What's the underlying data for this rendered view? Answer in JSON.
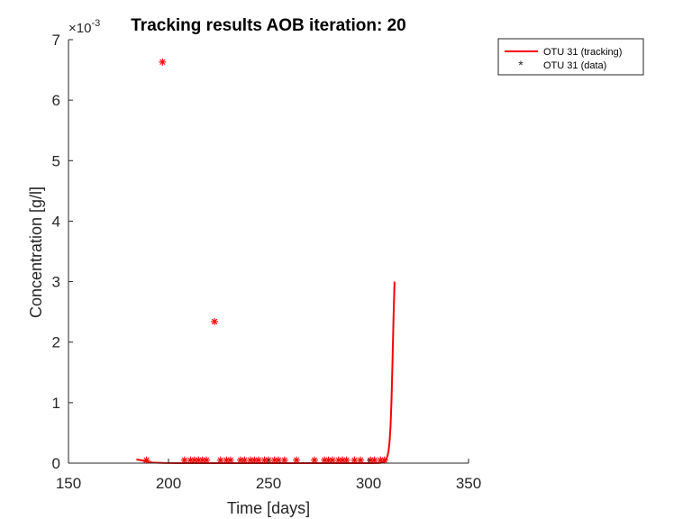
{
  "chart_data": {
    "type": "line",
    "title": "Tracking results AOB iteration: 20",
    "xlabel": "Time [days]",
    "ylabel": "Concentration [g/l]",
    "y_exponent_label": "×10",
    "y_exponent_power": "-3",
    "y_exponent_value": 0.001,
    "xlim": [
      150,
      350
    ],
    "ylim": [
      0,
      0.007
    ],
    "xticks": [
      150,
      200,
      250,
      300,
      350
    ],
    "yticks": [
      0,
      0.001,
      0.002,
      0.003,
      0.004,
      0.005,
      0.006,
      0.007
    ],
    "yticklabels": [
      "0",
      "1",
      "2",
      "3",
      "4",
      "5",
      "6",
      "7"
    ],
    "grid": false,
    "legend_location": "northeast-outside",
    "color": "#ff0000",
    "series": [
      {
        "name": "OTU 31 (tracking)",
        "type": "line",
        "x": [
          184,
          186,
          188,
          190,
          192,
          195,
          198,
          200,
          205,
          210,
          220,
          230,
          240,
          250,
          260,
          270,
          280,
          290,
          296,
          300,
          302,
          304,
          305,
          306,
          307,
          307.5,
          308,
          308.5,
          309,
          309.5,
          310,
          310.5,
          311,
          311.5,
          312,
          312.5,
          313
        ],
        "y": [
          6e-05,
          5e-05,
          3.5e-05,
          2e-05,
          1e-05,
          5e-06,
          2e-06,
          1e-06,
          5e-07,
          3e-07,
          2e-07,
          2e-07,
          2e-07,
          2e-07,
          2e-07,
          2e-07,
          2e-07,
          2e-07,
          3e-07,
          5e-07,
          8e-07,
          1.5e-06,
          2.5e-06,
          5e-06,
          1e-05,
          1.5e-05,
          2.5e-05,
          4e-05,
          7e-05,
          0.00012,
          0.0002,
          0.00035,
          0.0006,
          0.00105,
          0.0017,
          0.0024,
          0.003
        ]
      },
      {
        "name": "OTU 31 (data)",
        "type": "scatter",
        "marker": "*",
        "x": [
          189,
          197,
          208,
          211,
          213,
          215,
          217,
          219,
          223,
          226,
          229,
          231,
          236,
          238,
          241,
          243,
          245,
          248,
          250,
          253,
          255,
          258,
          264,
          273,
          278,
          280,
          282,
          285,
          287,
          289,
          293,
          296,
          301,
          303,
          306,
          308
        ],
        "y": [
          5e-05,
          0.00663,
          5e-05,
          5e-05,
          5e-05,
          5e-05,
          5e-05,
          5e-05,
          0.00234,
          5e-05,
          5e-05,
          5e-05,
          5e-05,
          5e-05,
          5e-05,
          5e-05,
          5e-05,
          5e-05,
          5e-05,
          5e-05,
          5e-05,
          5e-05,
          5e-05,
          5e-05,
          5e-05,
          5e-05,
          5e-05,
          5e-05,
          5e-05,
          5e-05,
          5e-05,
          5e-05,
          5e-05,
          5e-05,
          5e-05,
          5e-05
        ]
      }
    ]
  }
}
